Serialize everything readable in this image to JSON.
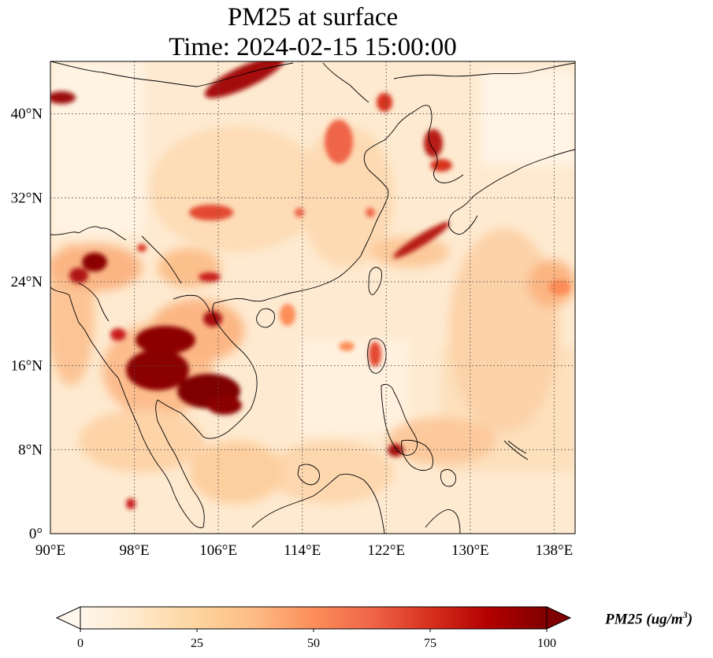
{
  "title": {
    "line1": "PM25 at surface",
    "line2": "Time: 2024-02-15 15:00:00"
  },
  "map": {
    "lon_range": [
      90,
      140
    ],
    "lat_range": [
      0,
      45
    ],
    "lon_ticks": [
      {
        "value": 90,
        "label": "90°E"
      },
      {
        "value": 98,
        "label": "98°E"
      },
      {
        "value": 106,
        "label": "106°E"
      },
      {
        "value": 114,
        "label": "114°E"
      },
      {
        "value": 122,
        "label": "122°E"
      },
      {
        "value": 130,
        "label": "130°E"
      },
      {
        "value": 138,
        "label": "138°E"
      }
    ],
    "lat_ticks": [
      {
        "value": 0,
        "label": "0°"
      },
      {
        "value": 8,
        "label": "8°N"
      },
      {
        "value": 16,
        "label": "16°N"
      },
      {
        "value": 24,
        "label": "24°N"
      },
      {
        "value": 32,
        "label": "32°N"
      },
      {
        "value": 40,
        "label": "40°N"
      }
    ],
    "gridlines": true,
    "gridline_style": "dotted",
    "colormap": "OrRd",
    "colormap_stops": [
      "#fff7ec",
      "#fee8c8",
      "#fdd49e",
      "#fdbb84",
      "#fc8d59",
      "#ef6548",
      "#d7301f",
      "#b30000",
      "#7f0000"
    ],
    "coastline_color": "#000000"
  },
  "colorbar": {
    "min": 0,
    "max": 100,
    "extend": "both",
    "ticks": [
      {
        "value": 0,
        "label": "0"
      },
      {
        "value": 25,
        "label": "25"
      },
      {
        "value": 50,
        "label": "50"
      },
      {
        "value": 75,
        "label": "75"
      },
      {
        "value": 100,
        "label": "100"
      }
    ],
    "label_name": "PM25 (ug/m",
    "label_power": "3",
    "label_close": ")"
  }
}
